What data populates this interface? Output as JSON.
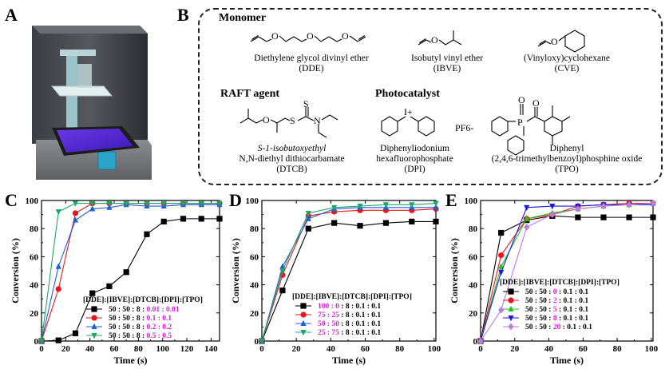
{
  "panels": {
    "A": "A",
    "B": "B",
    "C": "C",
    "D": "D",
    "E": "E"
  },
  "scheme": {
    "monomer_heading": "Monomer",
    "raft_heading": "RAFT agent",
    "photocat_heading": "Photocatalyst",
    "dde": {
      "name": "Diethylene glycol divinyl ether",
      "abbr": "(DDE)"
    },
    "ibve": {
      "name": "Isobutyl vinyl ether",
      "abbr": "(IBVE)"
    },
    "cve": {
      "name": "(Vinyloxy)cyclohexane",
      "abbr": "(CVE)"
    },
    "dtcb": {
      "name1": "S-1-isobutoxyethyl",
      "name2": "N,N-diethyl dithiocarbamate",
      "abbr": "(DTCB)"
    },
    "dpi": {
      "name1": "Diphenyliodonium",
      "name2": "hexafluorophosphate",
      "abbr": "(DPI)",
      "counter_ion": "PF6-",
      "cation": "I+"
    },
    "tpo": {
      "name1": "Diphenyl",
      "name2": "(2,4,6-trimethylbenzoyl)phosphine oxide",
      "abbr": "(TPO)"
    },
    "atoms": {
      "O": "O",
      "S": "S",
      "N": "N",
      "P": "P"
    }
  },
  "chart_data": [
    {
      "id": "C",
      "type": "line",
      "xlabel": "Time (s)",
      "ylabel": "Conversion (%)",
      "xlim": [
        0,
        147
      ],
      "ylim": [
        0,
        100
      ],
      "xticks": [
        0,
        20,
        40,
        60,
        80,
        100,
        120,
        140
      ],
      "yticks": [
        0,
        20,
        40,
        60,
        80,
        100
      ],
      "legend_title": "[DDE]:[IBVE]:[DTCB]:[DPI]:[TPO]",
      "legend_prefix": "50 : 50 : 8 :",
      "legend_placement": "bottom-right",
      "series": [
        {
          "name": "0.01 : 0.01",
          "color": "#000000",
          "marker": "square",
          "x": [
            0,
            14,
            28,
            42,
            56,
            70,
            87,
            101,
            117,
            132,
            147
          ],
          "y": [
            0,
            0.5,
            5.5,
            34,
            39,
            49,
            76,
            85,
            87,
            87,
            87
          ]
        },
        {
          "name": "0.1 : 0.1",
          "color": "#e8171b",
          "marker": "circle",
          "x": [
            0,
            14,
            28,
            42,
            56,
            70,
            87,
            101,
            117,
            132,
            147
          ],
          "y": [
            0,
            37,
            91,
            98,
            98,
            98,
            98,
            98,
            98,
            98,
            98
          ]
        },
        {
          "name": "0.2 : 0.2",
          "color": "#1f5fd6",
          "marker": "triangle-up",
          "x": [
            0,
            14,
            28,
            42,
            56,
            70,
            87,
            101,
            117,
            132,
            147
          ],
          "y": [
            0,
            53,
            86,
            94,
            95,
            97,
            96,
            96,
            97,
            97,
            97
          ]
        },
        {
          "name": "0.5 : 0.5",
          "color": "#1aa86a",
          "marker": "triangle-down",
          "x": [
            0,
            14,
            28,
            42,
            56,
            70,
            87,
            101,
            117,
            132,
            147
          ],
          "y": [
            0,
            92,
            98,
            98,
            98,
            98,
            98,
            98,
            98,
            98,
            98
          ]
        }
      ]
    },
    {
      "id": "D",
      "type": "line",
      "xlabel": "Time (s)",
      "ylabel": "Conversion (%)",
      "xlim": [
        0,
        101
      ],
      "ylim": [
        0,
        100
      ],
      "xticks": [
        0,
        20,
        40,
        60,
        80,
        100
      ],
      "yticks": [
        0,
        20,
        40,
        60,
        80,
        100
      ],
      "legend_title": "[DDE]:[IBVE]:[DTCB]:[DPI]:[TPO]",
      "legend_suffix": ": 8 : 0.1 : 0.1",
      "legend_placement": "bottom-right",
      "series": [
        {
          "name": "100 : 0",
          "color": "#000000",
          "marker": "square",
          "x": [
            0,
            12,
            27,
            42,
            57,
            72,
            87,
            101
          ],
          "y": [
            0,
            36,
            80,
            84,
            82,
            84,
            85,
            85
          ]
        },
        {
          "name": "75 : 25",
          "color": "#e8171b",
          "marker": "circle",
          "x": [
            0,
            12,
            27,
            42,
            57,
            72,
            87,
            101
          ],
          "y": [
            0,
            47,
            89,
            92,
            93,
            93,
            93,
            94
          ]
        },
        {
          "name": "50 : 50",
          "color": "#1f5fd6",
          "marker": "triangle-up",
          "x": [
            0,
            12,
            27,
            42,
            57,
            72,
            87,
            101
          ],
          "y": [
            0,
            53,
            87,
            94,
            95,
            95,
            95,
            95
          ]
        },
        {
          "name": "25 : 75",
          "color": "#1aa86a",
          "marker": "triangle-down",
          "x": [
            0,
            12,
            27,
            42,
            57,
            72,
            87,
            101
          ],
          "y": [
            0,
            50,
            91,
            95,
            96,
            97,
            97,
            98
          ]
        }
      ]
    },
    {
      "id": "E",
      "type": "line",
      "xlabel": "Time (s)",
      "ylabel": "Conversion (%)",
      "xlim": [
        0,
        101
      ],
      "ylim": [
        0,
        100
      ],
      "xticks": [
        0,
        20,
        40,
        60,
        80,
        100
      ],
      "yticks": [
        0,
        20,
        40,
        60,
        80,
        100
      ],
      "legend_title": "[DDE]:[IBVE]:[DTCB]:[DPI]:[TPO]",
      "legend_prefix": "50 : 50 :",
      "legend_suffix": ": 0.1 : 0.1",
      "legend_placement": "bottom-right",
      "series": [
        {
          "name": "0",
          "color": "#000000",
          "marker": "square",
          "x": [
            0,
            12,
            27,
            42,
            57,
            72,
            87,
            101
          ],
          "y": [
            0,
            77,
            86,
            89,
            88,
            88,
            88,
            88
          ]
        },
        {
          "name": "2",
          "color": "#e8171b",
          "marker": "circle",
          "x": [
            0,
            12,
            27,
            42,
            57,
            72,
            87,
            101
          ],
          "y": [
            0,
            61,
            87,
            90,
            96,
            97,
            98,
            98
          ]
        },
        {
          "name": "5",
          "color": "#22c41e",
          "marker": "triangle-up",
          "x": [
            0,
            12,
            27,
            42,
            57,
            72,
            87,
            101
          ],
          "y": [
            0,
            53,
            87,
            91,
            94,
            96,
            97,
            98
          ]
        },
        {
          "name": "8",
          "color": "#1a1ae0",
          "marker": "triangle-down",
          "x": [
            0,
            12,
            27,
            42,
            57,
            72,
            87,
            101
          ],
          "y": [
            0,
            49,
            95,
            96,
            96,
            97,
            97,
            97
          ]
        },
        {
          "name": "20",
          "color": "#c07ae0",
          "marker": "diamond",
          "x": [
            0,
            12,
            27,
            42,
            57,
            72,
            87,
            101
          ],
          "y": [
            0,
            22,
            81,
            90,
            94,
            96,
            97,
            98
          ]
        }
      ]
    }
  ]
}
